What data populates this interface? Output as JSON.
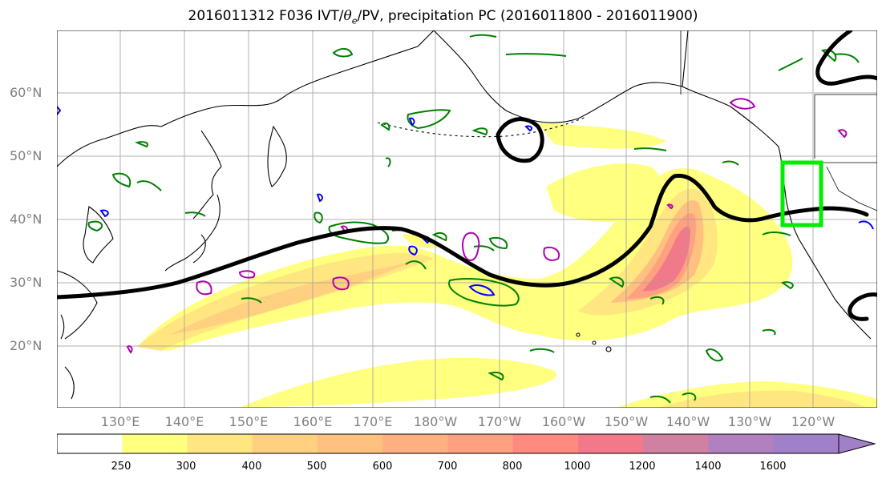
{
  "title": {
    "prefix": "2016011312 F036 IVT/",
    "theta": "θ",
    "sub": "e",
    "suffix": "/PV, precipitation PC (2016011800 - 2016011900)"
  },
  "lat_labels": [
    "60°N",
    "50°N",
    "40°N",
    "30°N",
    "20°N"
  ],
  "lon_labels": [
    "130°E",
    "140°E",
    "150°E",
    "160°E",
    "170°E",
    "180°W",
    "170°W",
    "160°W",
    "150°W",
    "140°W",
    "130°W",
    "120°W"
  ],
  "colorbar": {
    "ticks": [
      "250",
      "300",
      "400",
      "500",
      "600",
      "700",
      "800",
      "1000",
      "1200",
      "1400",
      "1600"
    ],
    "colors": [
      "#ffffff",
      "#ffff80",
      "#ffe680",
      "#ffd080",
      "#ffc080",
      "#ffb080",
      "#ffa080",
      "#ff8a80",
      "#f07a8a",
      "#d080a0",
      "#b080c0",
      "#a080c8"
    ]
  },
  "colors": {
    "theta_contour": "#000000",
    "pv_positive": "#008000",
    "pv_negative": "#0000ff",
    "magenta_contour": "#b000b0",
    "box": "#00ee00"
  }
}
